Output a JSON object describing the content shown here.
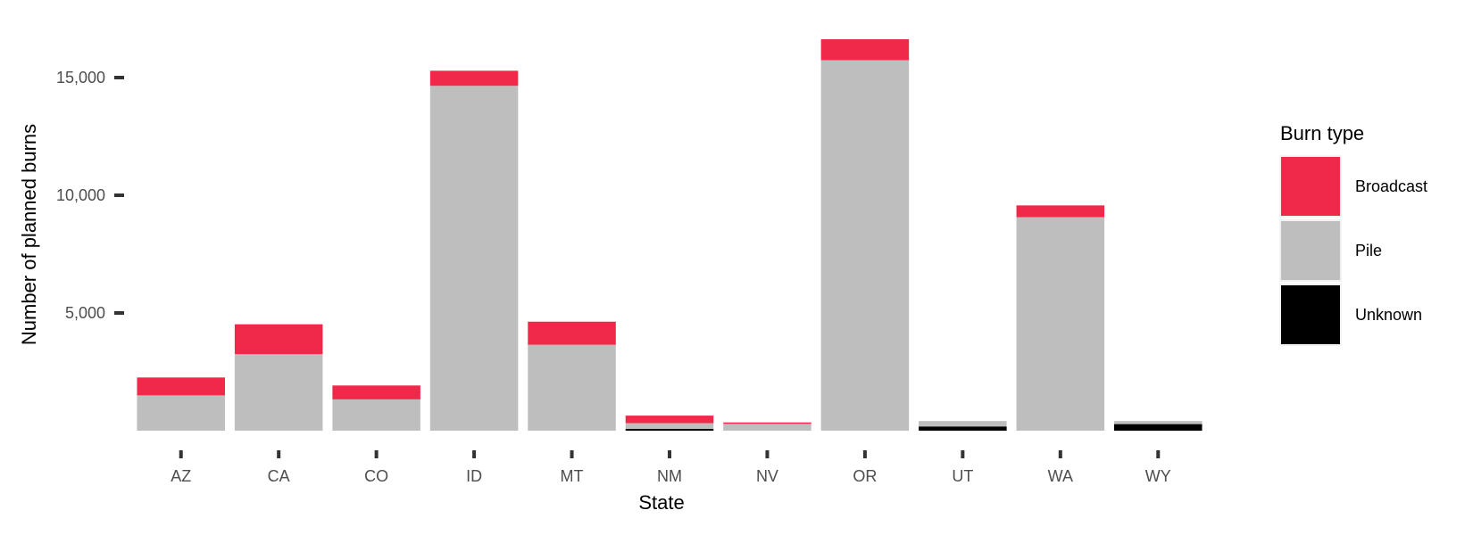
{
  "chart_data": {
    "type": "bar",
    "stacked": true,
    "title": "",
    "xlabel": "State",
    "ylabel": "Number of planned burns",
    "categories": [
      "AZ",
      "CA",
      "CO",
      "ID",
      "MT",
      "NM",
      "NV",
      "OR",
      "UT",
      "WA",
      "WY"
    ],
    "series": [
      {
        "name": "Unknown",
        "color": "#000000",
        "values": [
          0,
          0,
          0,
          0,
          0,
          80,
          0,
          0,
          180,
          0,
          280
        ]
      },
      {
        "name": "Pile",
        "color": "#bebebe",
        "values": [
          1500,
          3250,
          1330,
          14650,
          3650,
          240,
          290,
          15740,
          230,
          9070,
          130
        ]
      },
      {
        "name": "Broadcast",
        "color": "#f0284a",
        "values": [
          760,
          1270,
          590,
          640,
          980,
          320,
          60,
          890,
          0,
          500,
          0
        ]
      }
    ],
    "ylim": [
      0,
      16600
    ],
    "yticks": [
      5000,
      10000,
      15000
    ],
    "ytick_labels": [
      "5,000",
      "10,000",
      "15,000"
    ],
    "grid": false,
    "legend": {
      "title": "Burn type",
      "position": "right",
      "items": [
        {
          "label": "Broadcast",
          "color": "#f0284a"
        },
        {
          "label": "Pile",
          "color": "#bebebe"
        },
        {
          "label": "Unknown",
          "color": "#000000"
        }
      ]
    }
  }
}
